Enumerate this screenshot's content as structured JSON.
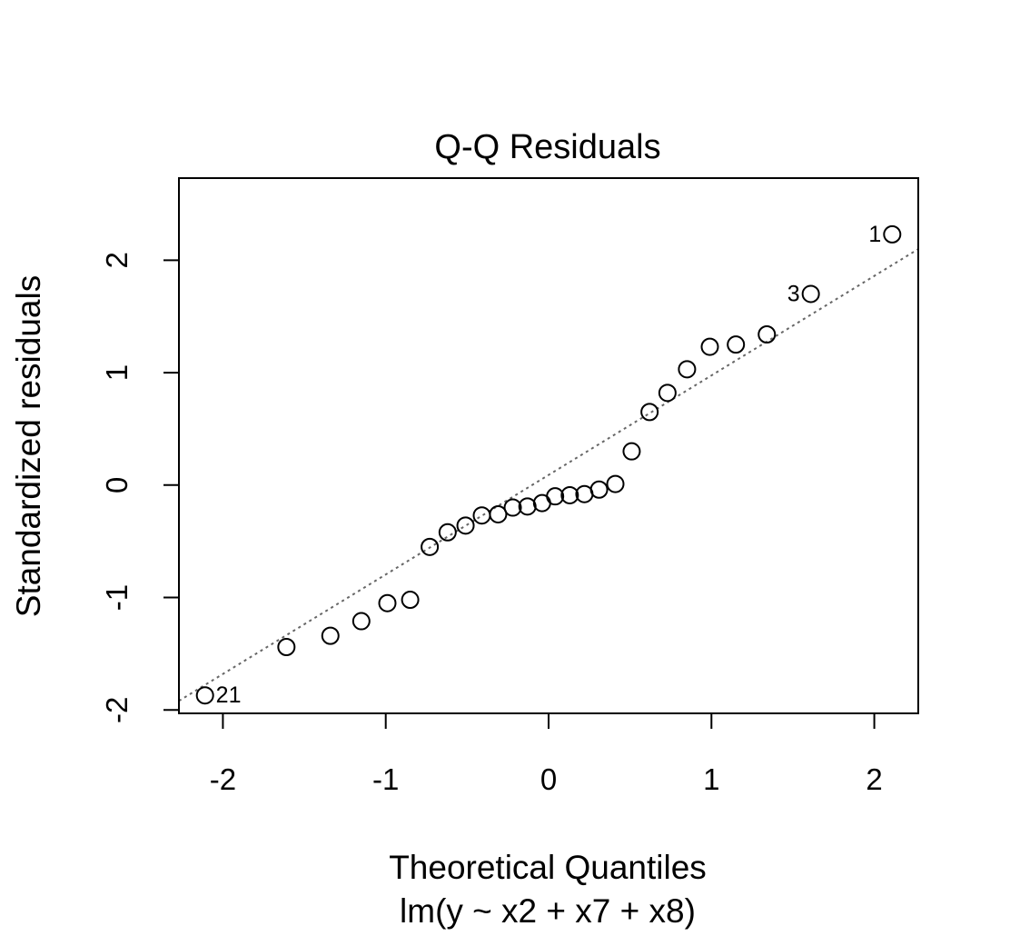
{
  "chart_data": {
    "type": "scatter",
    "title": "Q-Q Residuals",
    "xlabel": "Theoretical Quantiles",
    "sublabel": "lm(y ~ x2 + x7 + x8)",
    "ylabel": "Standardized residuals",
    "xlim": [
      -2.27,
      2.27
    ],
    "ylim": [
      -2.03,
      2.73
    ],
    "x_ticks": [
      -2,
      -1,
      0,
      1,
      2
    ],
    "x_tick_labels": [
      "-2",
      "-1",
      "0",
      "1",
      "2"
    ],
    "y_ticks": [
      -2,
      -1,
      0,
      1,
      2
    ],
    "y_tick_labels": [
      "-2",
      "-1",
      "0",
      "1",
      "2"
    ],
    "grid": false,
    "points": [
      {
        "x": -2.11,
        "y": -1.87,
        "label": "21"
      },
      {
        "x": -1.61,
        "y": -1.44
      },
      {
        "x": -1.34,
        "y": -1.34
      },
      {
        "x": -1.15,
        "y": -1.21
      },
      {
        "x": -0.99,
        "y": -1.05
      },
      {
        "x": -0.85,
        "y": -1.02
      },
      {
        "x": -0.73,
        "y": -0.55
      },
      {
        "x": -0.62,
        "y": -0.42
      },
      {
        "x": -0.51,
        "y": -0.36
      },
      {
        "x": -0.41,
        "y": -0.27
      },
      {
        "x": -0.31,
        "y": -0.26
      },
      {
        "x": -0.22,
        "y": -0.2
      },
      {
        "x": -0.13,
        "y": -0.19
      },
      {
        "x": -0.04,
        "y": -0.16
      },
      {
        "x": 0.04,
        "y": -0.1
      },
      {
        "x": 0.13,
        "y": -0.09
      },
      {
        "x": 0.22,
        "y": -0.08
      },
      {
        "x": 0.31,
        "y": -0.04
      },
      {
        "x": 0.41,
        "y": 0.01
      },
      {
        "x": 0.51,
        "y": 0.3
      },
      {
        "x": 0.62,
        "y": 0.65
      },
      {
        "x": 0.73,
        "y": 0.82
      },
      {
        "x": 0.85,
        "y": 1.03
      },
      {
        "x": 0.99,
        "y": 1.23
      },
      {
        "x": 1.15,
        "y": 1.25
      },
      {
        "x": 1.34,
        "y": 1.34
      },
      {
        "x": 1.61,
        "y": 1.7,
        "label": "3"
      },
      {
        "x": 2.11,
        "y": 2.23,
        "label": "1"
      }
    ],
    "reference_line": {
      "style": "dotted",
      "color": "#666666",
      "intercept": 0.09,
      "slope": 0.885
    }
  }
}
